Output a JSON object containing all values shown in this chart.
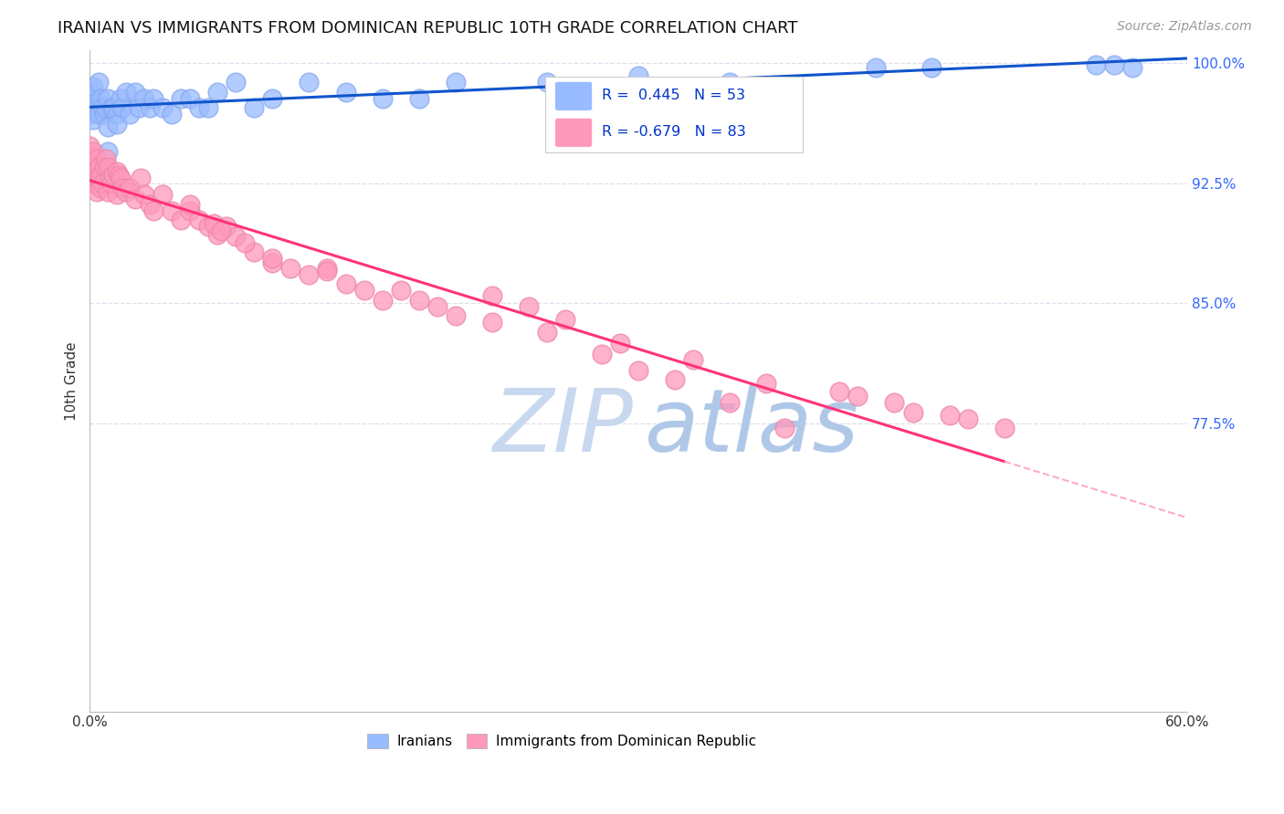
{
  "title": "IRANIAN VS IMMIGRANTS FROM DOMINICAN REPUBLIC 10TH GRADE CORRELATION CHART",
  "source": "Source: ZipAtlas.com",
  "ylabel_label": "10th Grade",
  "xmin": 0.0,
  "xmax": 0.6,
  "ymin": 0.595,
  "ymax": 1.008,
  "yticks": [
    0.775,
    0.85,
    0.925,
    1.0
  ],
  "ytick_labels": [
    "77.5%",
    "85.0%",
    "92.5%",
    "100.0%"
  ],
  "xticks": [
    0.0,
    0.1,
    0.2,
    0.3,
    0.4,
    0.5,
    0.6
  ],
  "xtick_labels": [
    "0.0%",
    "",
    "",
    "",
    "",
    "",
    "60.0%"
  ],
  "iranian_R": 0.445,
  "iranian_N": 53,
  "dominican_R": -0.679,
  "dominican_N": 83,
  "blue_scatter_color": "#99BBFF",
  "blue_edge_color": "#88AAEE",
  "blue_line_color": "#1155CC",
  "pink_scatter_color": "#FF99BB",
  "pink_edge_color": "#EE88AA",
  "pink_line_color": "#FF3377",
  "pink_dash_color": "#FFAACC",
  "legend_text_color": "#0033CC",
  "watermark_zip_color": "#CCDDF0",
  "watermark_atlas_color": "#AABBDD",
  "background_color": "#FFFFFF",
  "grid_color": "#DDDDEE",
  "right_tick_color": "#3366FF",
  "iranian_x": [
    0.0,
    0.0,
    0.001,
    0.001,
    0.002,
    0.002,
    0.003,
    0.004,
    0.005,
    0.005,
    0.006,
    0.007,
    0.008,
    0.009,
    0.01,
    0.01,
    0.01,
    0.012,
    0.013,
    0.015,
    0.015,
    0.017,
    0.018,
    0.02,
    0.022,
    0.025,
    0.027,
    0.03,
    0.033,
    0.035,
    0.04,
    0.045,
    0.05,
    0.055,
    0.06,
    0.065,
    0.07,
    0.08,
    0.09,
    0.1,
    0.12,
    0.14,
    0.16,
    0.18,
    0.2,
    0.25,
    0.3,
    0.35,
    0.43,
    0.46,
    0.55,
    0.56,
    0.57
  ],
  "iranian_y": [
    0.978,
    0.968,
    0.982,
    0.972,
    0.985,
    0.965,
    0.975,
    0.972,
    0.968,
    0.988,
    0.978,
    0.972,
    0.968,
    0.972,
    0.978,
    0.96,
    0.945,
    0.972,
    0.972,
    0.968,
    0.962,
    0.978,
    0.972,
    0.982,
    0.968,
    0.982,
    0.972,
    0.978,
    0.972,
    0.978,
    0.972,
    0.968,
    0.978,
    0.978,
    0.972,
    0.972,
    0.982,
    0.988,
    0.972,
    0.978,
    0.988,
    0.982,
    0.978,
    0.978,
    0.988,
    0.988,
    0.992,
    0.988,
    0.997,
    0.997,
    0.999,
    0.999,
    0.997
  ],
  "dominican_x": [
    0.0,
    0.0,
    0.0,
    0.001,
    0.001,
    0.001,
    0.002,
    0.002,
    0.003,
    0.003,
    0.004,
    0.004,
    0.005,
    0.005,
    0.006,
    0.006,
    0.007,
    0.008,
    0.009,
    0.01,
    0.01,
    0.011,
    0.012,
    0.013,
    0.015,
    0.015,
    0.016,
    0.017,
    0.018,
    0.02,
    0.022,
    0.025,
    0.028,
    0.03,
    0.033,
    0.035,
    0.04,
    0.045,
    0.05,
    0.055,
    0.06,
    0.065,
    0.07,
    0.075,
    0.08,
    0.09,
    0.1,
    0.11,
    0.12,
    0.13,
    0.14,
    0.15,
    0.16,
    0.18,
    0.2,
    0.22,
    0.25,
    0.28,
    0.3,
    0.32,
    0.35,
    0.38,
    0.42,
    0.45,
    0.48,
    0.5,
    0.22,
    0.24,
    0.26,
    0.29,
    0.33,
    0.37,
    0.41,
    0.44,
    0.47,
    0.1,
    0.13,
    0.17,
    0.19,
    0.055,
    0.068,
    0.072,
    0.085
  ],
  "dominican_y": [
    0.948,
    0.93,
    0.925,
    0.94,
    0.935,
    0.942,
    0.945,
    0.925,
    0.935,
    0.93,
    0.94,
    0.92,
    0.935,
    0.928,
    0.93,
    0.922,
    0.925,
    0.935,
    0.94,
    0.935,
    0.92,
    0.928,
    0.925,
    0.93,
    0.932,
    0.918,
    0.93,
    0.928,
    0.922,
    0.92,
    0.922,
    0.915,
    0.928,
    0.918,
    0.912,
    0.908,
    0.918,
    0.908,
    0.902,
    0.908,
    0.902,
    0.898,
    0.893,
    0.898,
    0.892,
    0.882,
    0.875,
    0.872,
    0.868,
    0.872,
    0.862,
    0.858,
    0.852,
    0.852,
    0.842,
    0.838,
    0.832,
    0.818,
    0.808,
    0.802,
    0.788,
    0.772,
    0.792,
    0.782,
    0.778,
    0.772,
    0.855,
    0.848,
    0.84,
    0.825,
    0.815,
    0.8,
    0.795,
    0.788,
    0.78,
    0.878,
    0.87,
    0.858,
    0.848,
    0.912,
    0.9,
    0.895,
    0.888
  ]
}
